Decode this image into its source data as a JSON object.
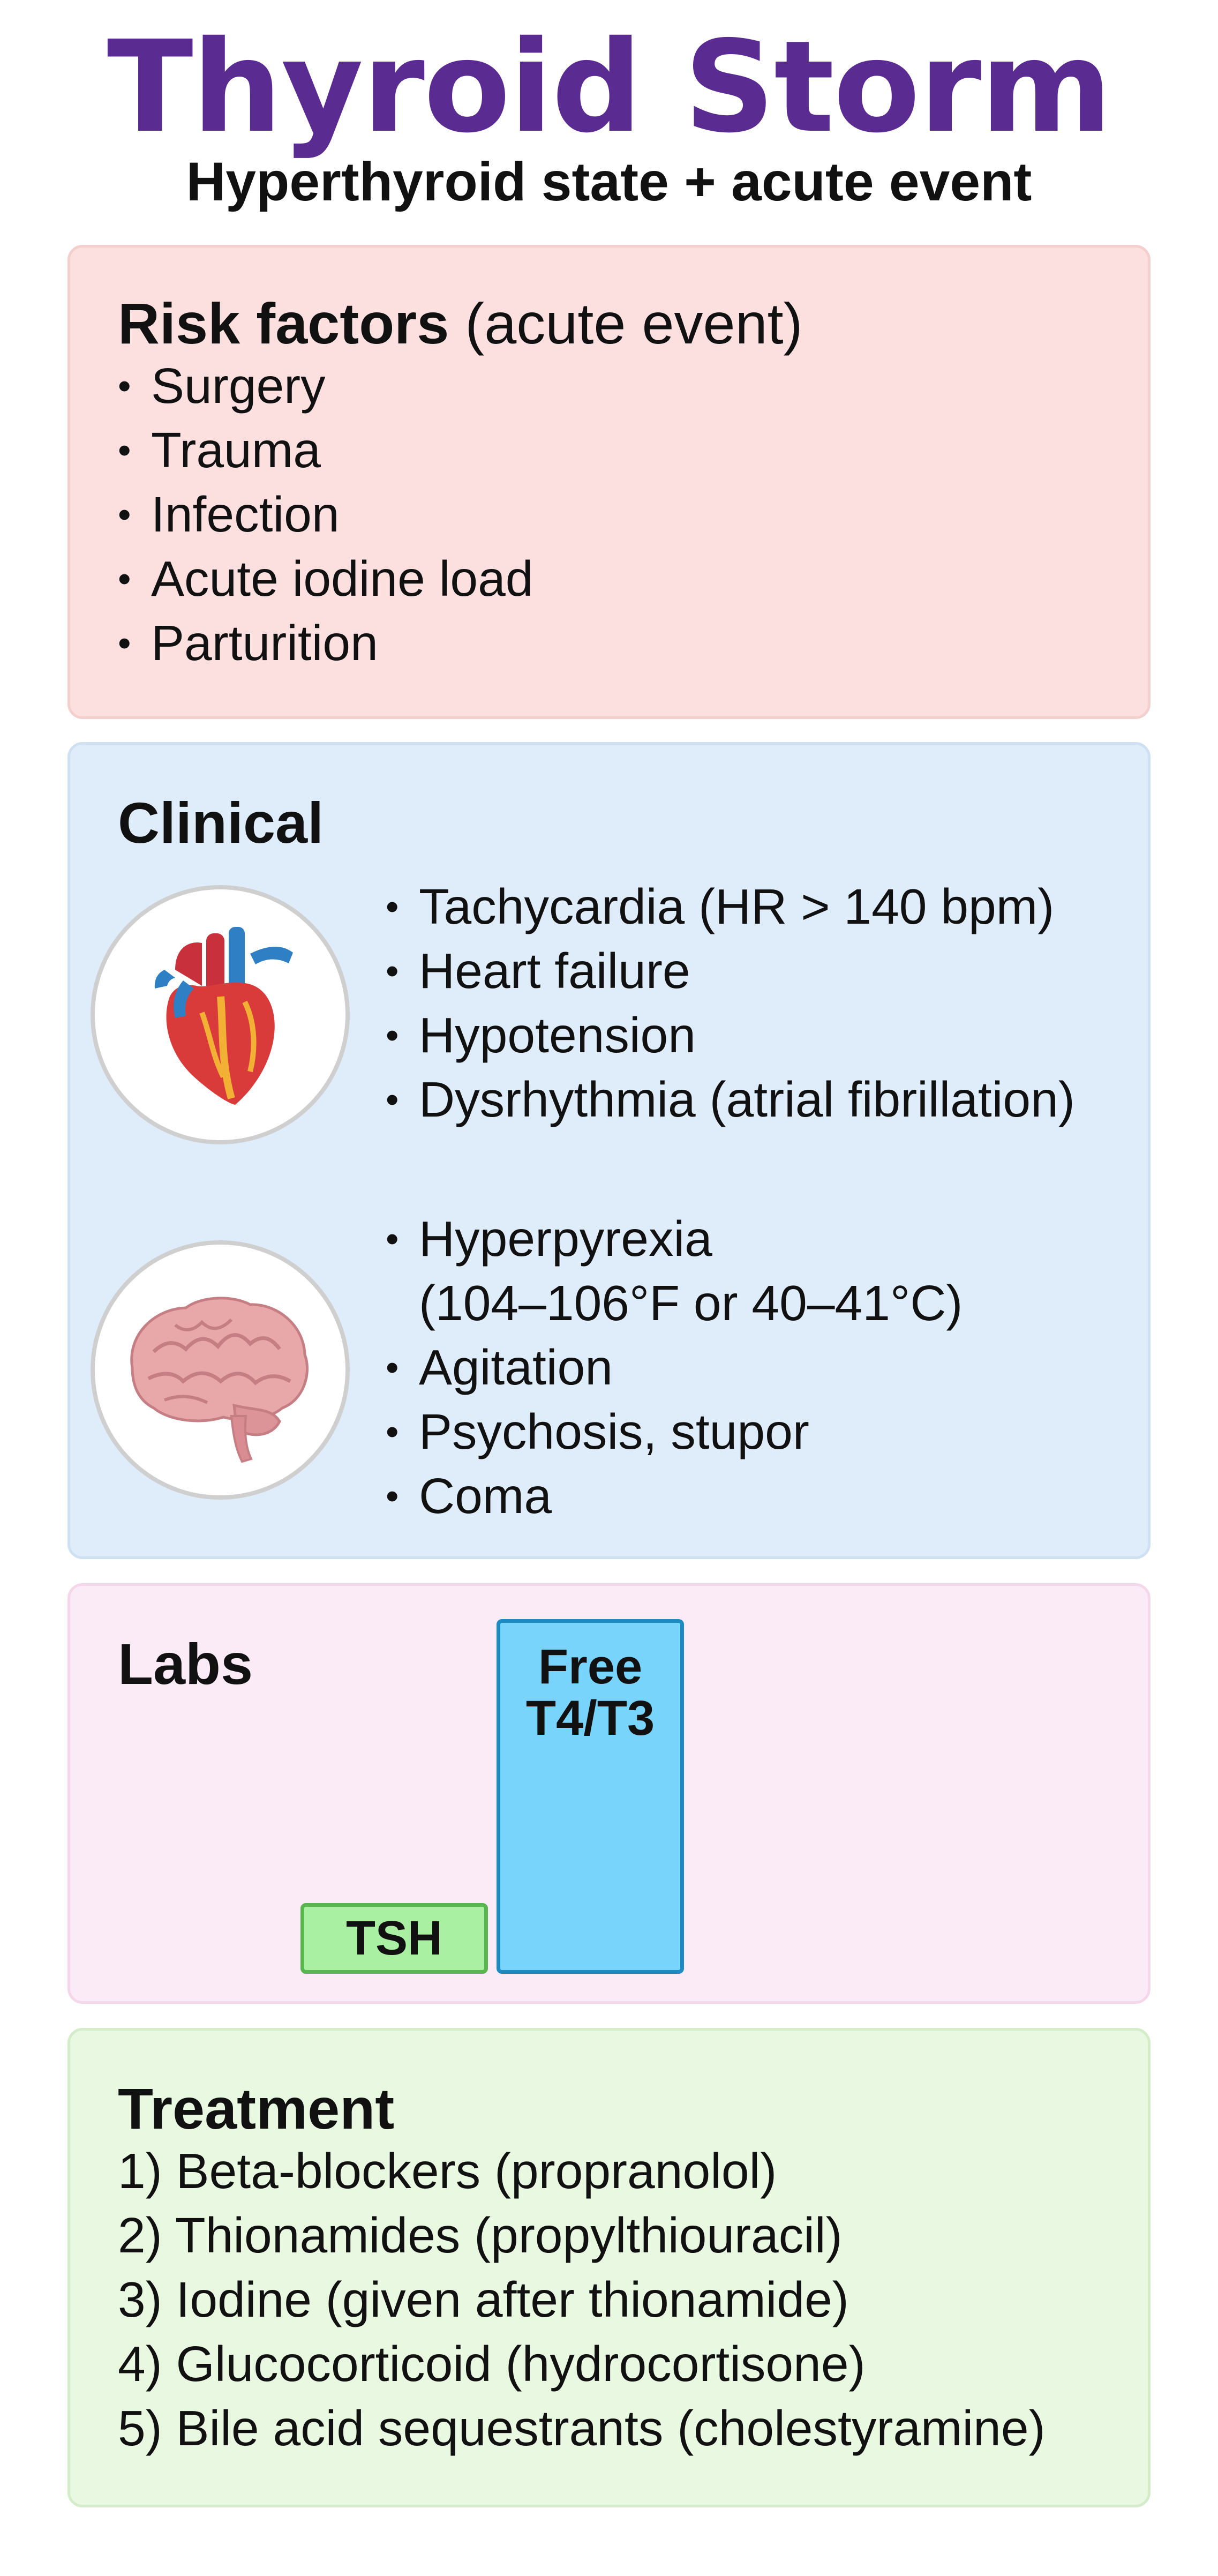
{
  "header": {
    "title": "Thyroid Storm",
    "subtitle": "Hyperthyroid state + acute event"
  },
  "risk_factors": {
    "heading": "Risk factors",
    "heading_note": "(acute event)",
    "items": [
      "Surgery",
      "Trauma",
      "Infection",
      "Acute iodine load",
      "Parturition"
    ]
  },
  "clinical": {
    "heading": "Clinical",
    "cardiac": {
      "icon": "heart-icon",
      "items": [
        "Tachycardia (HR > 140 bpm)",
        "Heart failure",
        "Hypotension",
        "Dysrhythmia (atrial fibrillation)"
      ]
    },
    "neuro": {
      "icon": "brain-icon",
      "item1_line1": "Hyperpyrexia",
      "item1_line2": "(104–106°F or 40–41°C)",
      "items": [
        "Agitation",
        "Psychosis, stupor",
        "Coma"
      ]
    }
  },
  "labs": {
    "heading": "Labs",
    "tsh_label": "TSH",
    "free_label_line1": "Free",
    "free_label_line2": "T4/T3",
    "colors": {
      "tsh": "#a9f0a3",
      "free": "#79d4fb"
    }
  },
  "treatment": {
    "heading": "Treatment",
    "items": [
      "1) Beta-blockers (propranolol)",
      "2) Thionamides (propylthiouracil)",
      "3) Iodine (given after thionamide)",
      "4) Glucocorticoid (hydrocortisone)",
      "5) Bile acid sequestrants (cholestyramine)"
    ]
  },
  "colors": {
    "title": "#5a2b91",
    "risk_panel": "#fbe0df",
    "clinical_panel": "#dfedfb",
    "labs_panel": "#fbebf6",
    "treatment_panel": "#e8f8e1"
  }
}
